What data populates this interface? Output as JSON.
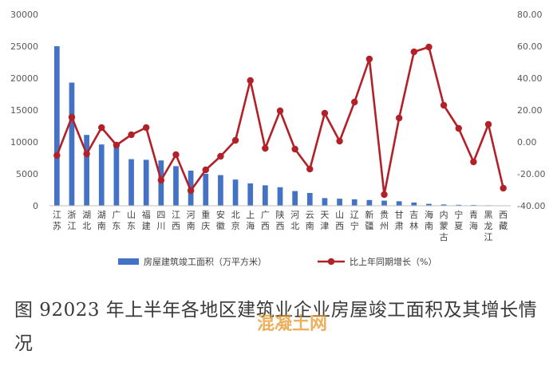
{
  "colors": {
    "bar": "#4472c4",
    "line": "#b22028",
    "grid": "#d9d9d9",
    "axis": "#bfbfbf"
  },
  "chart_data": {
    "type": "bar+line",
    "categories": [
      "江苏",
      "浙江",
      "湖北",
      "湖南",
      "广东",
      "山东",
      "福建",
      "四川",
      "江西",
      "河南",
      "重庆",
      "安徽",
      "北京",
      "上海",
      "广西",
      "陕西",
      "河北",
      "云南",
      "天津",
      "山西",
      "辽宁",
      "新疆",
      "贵州",
      "甘肃",
      "吉林",
      "海南",
      "内蒙古",
      "宁夏",
      "青海",
      "黑龙江",
      "西藏"
    ],
    "series": [
      {
        "name": "房屋建筑竣工面积（万平方米）",
        "type": "bar",
        "axis": "left",
        "values": [
          25000,
          19300,
          11100,
          9600,
          9300,
          7300,
          7200,
          7100,
          6200,
          5500,
          5000,
          4800,
          4100,
          3500,
          3200,
          2900,
          2300,
          2000,
          1200,
          1100,
          1000,
          900,
          800,
          700,
          500,
          300,
          200,
          150,
          120,
          80,
          50
        ]
      },
      {
        "name": "比上年同期增长（%）",
        "type": "line",
        "axis": "right",
        "values": [
          -8.5,
          15.5,
          -7.5,
          9.0,
          -2.0,
          4.5,
          9.0,
          -24.0,
          -8.0,
          -30.5,
          -17.5,
          -9.0,
          1.0,
          38.5,
          -4.0,
          19.5,
          -4.5,
          -17.0,
          18.0,
          0.5,
          25.0,
          52.0,
          -33.0,
          15.0,
          56.5,
          59.5,
          23.0,
          8.5,
          -12.5,
          11.0,
          -29.0
        ]
      }
    ],
    "y_left": {
      "min": 0,
      "max": 30000,
      "ticks": [
        "0",
        "5000",
        "10000",
        "15000",
        "20000",
        "25000",
        "30000"
      ]
    },
    "y_right": {
      "min": -40,
      "max": 80,
      "ticks": [
        "-40.00",
        "-20.00",
        "0.00",
        "20.00",
        "40.00",
        "60.00",
        "80.00"
      ]
    },
    "grid": false,
    "legend_position": "bottom"
  },
  "caption": "图 92023 年上半年各地区建筑业企业房屋竣工面积及其增长情况",
  "watermark": "混凝土网"
}
